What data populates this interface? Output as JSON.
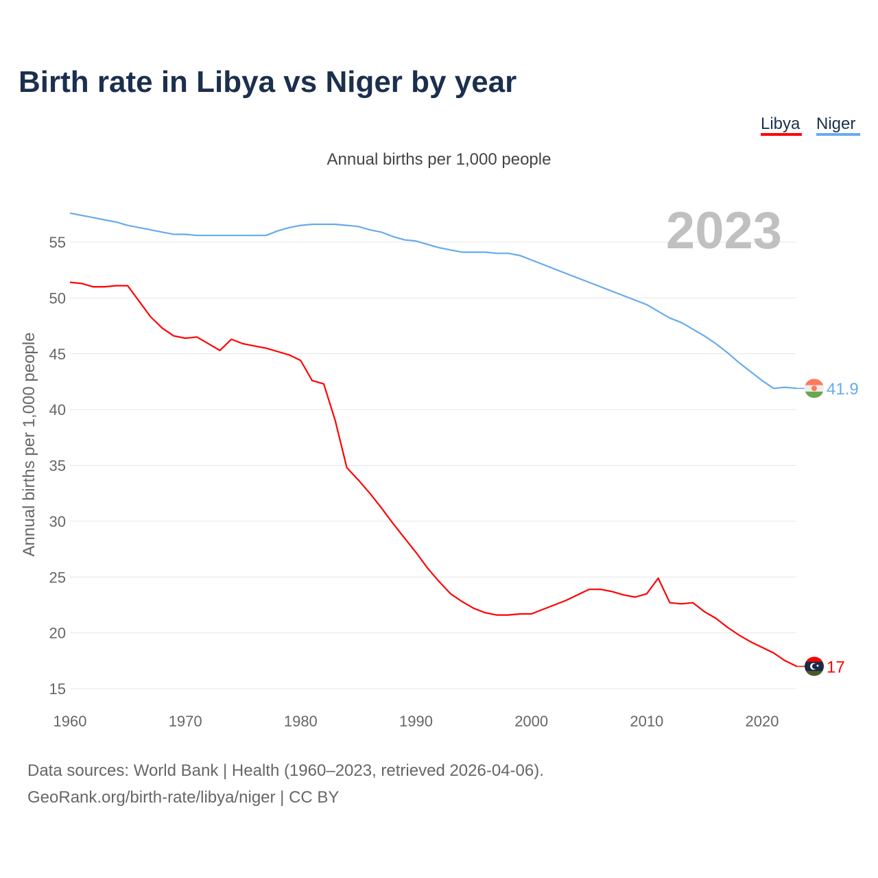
{
  "title": "Birth rate in Libya vs Niger by year",
  "subtitle": "Annual births per 1,000 people",
  "year_label": "2023",
  "source_line1": "Data sources: World Bank | Health (1960–2023, retrieved 2026-04-06).",
  "source_line2": "GeoRank.org/birth-rate/libya/niger | CC BY",
  "chart_data": {
    "type": "line",
    "title": "Birth rate in Libya vs Niger by year",
    "xlabel": "",
    "ylabel": "Annual births per 1,000 people",
    "xlim": [
      1960,
      2023
    ],
    "ylim": [
      15,
      57.6
    ],
    "xticks": [
      1960,
      1970,
      1980,
      1990,
      2000,
      2010,
      2020
    ],
    "yticks": [
      15,
      20,
      25,
      30,
      35,
      40,
      45,
      50,
      55
    ],
    "grid": true,
    "legend": "top-right",
    "x_start": 1960,
    "series": [
      {
        "name": "Libya",
        "color": "#ff0000",
        "end_label": "17",
        "flag": "libya-flag-icon",
        "values": [
          51.4,
          51.3,
          51.0,
          51.0,
          51.1,
          51.1,
          49.7,
          48.3,
          47.3,
          46.6,
          46.4,
          46.5,
          45.9,
          45.3,
          46.3,
          45.9,
          45.7,
          45.5,
          45.2,
          44.9,
          44.4,
          42.6,
          42.3,
          39.0,
          34.8,
          33.7,
          32.5,
          31.2,
          29.8,
          28.5,
          27.2,
          25.8,
          24.6,
          23.5,
          22.8,
          22.2,
          21.8,
          21.6,
          21.6,
          21.7,
          21.7,
          22.1,
          22.5,
          22.9,
          23.4,
          23.9,
          23.9,
          23.7,
          23.4,
          23.2,
          23.5,
          24.9,
          22.7,
          22.6,
          22.7,
          21.9,
          21.3,
          20.5,
          19.8,
          19.2,
          18.7,
          18.2,
          17.5,
          17.0
        ]
      },
      {
        "name": "Niger",
        "color": "#66aaee",
        "end_label": "41.9",
        "flag": "niger-flag-icon",
        "values": [
          57.6,
          57.4,
          57.2,
          57.0,
          56.8,
          56.5,
          56.3,
          56.1,
          55.9,
          55.7,
          55.7,
          55.6,
          55.6,
          55.6,
          55.6,
          55.6,
          55.6,
          55.6,
          56.0,
          56.3,
          56.5,
          56.6,
          56.6,
          56.6,
          56.5,
          56.4,
          56.1,
          55.9,
          55.5,
          55.2,
          55.1,
          54.8,
          54.5,
          54.3,
          54.1,
          54.1,
          54.1,
          54.0,
          54.0,
          53.8,
          53.4,
          53.0,
          52.6,
          52.2,
          51.8,
          51.4,
          51.0,
          50.6,
          50.2,
          49.8,
          49.4,
          48.8,
          48.2,
          47.8,
          47.2,
          46.6,
          45.9,
          45.1,
          44.2,
          43.4,
          42.6,
          41.9,
          42.0,
          41.9
        ]
      }
    ]
  }
}
